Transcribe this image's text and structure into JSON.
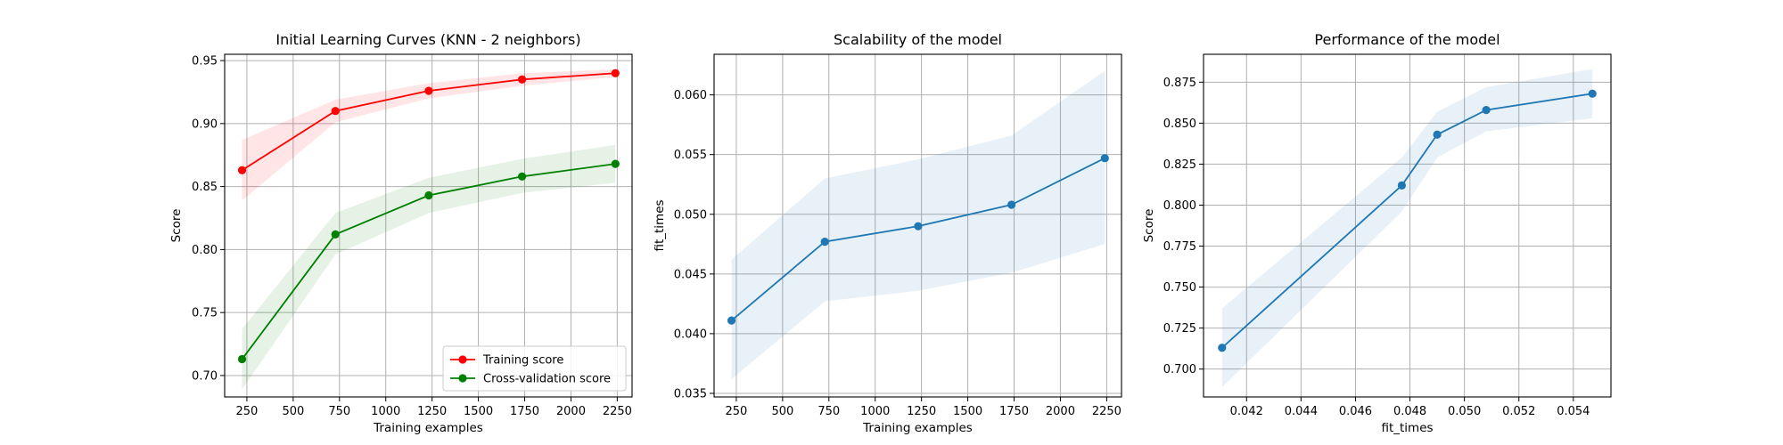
{
  "chart_data": [
    {
      "type": "line",
      "title": "Initial Learning Curves (KNN - 2 neighbors)",
      "xlabel": "Training examples",
      "ylabel": "Score",
      "xlim": [
        130,
        2330
      ],
      "ylim": [
        0.683,
        0.955
      ],
      "xticks": [
        250,
        500,
        750,
        1000,
        1250,
        1500,
        1750,
        2000,
        2250
      ],
      "xtick_labels": [
        "250",
        "500",
        "750",
        "1000",
        "1250",
        "1500",
        "1750",
        "2000",
        "2250"
      ],
      "yticks": [
        0.7,
        0.75,
        0.8,
        0.85,
        0.9,
        0.95
      ],
      "ytick_labels": [
        "0.70",
        "0.75",
        "0.80",
        "0.85",
        "0.90",
        "0.95"
      ],
      "grid": true,
      "legend": "lower-right",
      "x": [
        224,
        728,
        1232,
        1736,
        2240
      ],
      "series": [
        {
          "name": "Training score",
          "color": "#ff0000",
          "band_color": "#ff0000",
          "values": [
            0.863,
            0.91,
            0.926,
            0.935,
            0.94
          ],
          "lower": [
            0.839,
            0.901,
            0.92,
            0.93,
            0.937
          ],
          "upper": [
            0.887,
            0.919,
            0.932,
            0.94,
            0.943
          ]
        },
        {
          "name": "Cross-validation score",
          "color": "#008000",
          "band_color": "#008000",
          "values": [
            0.713,
            0.812,
            0.843,
            0.858,
            0.868
          ],
          "lower": [
            0.689,
            0.796,
            0.829,
            0.845,
            0.853
          ],
          "upper": [
            0.737,
            0.829,
            0.857,
            0.872,
            0.883
          ]
        }
      ]
    },
    {
      "type": "line",
      "title": "Scalability of the model",
      "xlabel": "Training examples",
      "ylabel": "fit_times",
      "xlim": [
        130,
        2330
      ],
      "ylim": [
        0.0347,
        0.0634
      ],
      "xticks": [
        250,
        500,
        750,
        1000,
        1250,
        1500,
        1750,
        2000,
        2250
      ],
      "xtick_labels": [
        "250",
        "500",
        "750",
        "1000",
        "1250",
        "1500",
        "1750",
        "2000",
        "2250"
      ],
      "yticks": [
        0.035,
        0.04,
        0.045,
        0.05,
        0.055,
        0.06
      ],
      "ytick_labels": [
        "0.035",
        "0.040",
        "0.045",
        "0.050",
        "0.055",
        "0.060"
      ],
      "grid": true,
      "x": [
        224,
        728,
        1232,
        1736,
        2240
      ],
      "series": [
        {
          "name": "",
          "color": "#1f77b4",
          "band_color": "#1f77b4",
          "values": [
            0.0411,
            0.0477,
            0.049,
            0.0508,
            0.0547
          ],
          "lower": [
            0.0362,
            0.0427,
            0.0436,
            0.0451,
            0.0475
          ],
          "upper": [
            0.0462,
            0.053,
            0.0546,
            0.0566,
            0.062
          ]
        }
      ]
    },
    {
      "type": "line",
      "title": "Performance of the model",
      "xlabel": "fit_times",
      "ylabel": "Score",
      "xlim": [
        0.04042,
        0.05538
      ],
      "ylim": [
        0.683,
        0.892
      ],
      "xticks": [
        0.042,
        0.044,
        0.046,
        0.048,
        0.05,
        0.052,
        0.054
      ],
      "xtick_labels": [
        "0.042",
        "0.044",
        "0.046",
        "0.048",
        "0.050",
        "0.052",
        "0.054"
      ],
      "yticks": [
        0.7,
        0.725,
        0.75,
        0.775,
        0.8,
        0.825,
        0.85,
        0.875
      ],
      "ytick_labels": [
        "0.700",
        "0.725",
        "0.750",
        "0.775",
        "0.800",
        "0.825",
        "0.850",
        "0.875"
      ],
      "grid": true,
      "x": [
        0.0411,
        0.0477,
        0.049,
        0.0508,
        0.0547
      ],
      "series": [
        {
          "name": "",
          "color": "#1f77b4",
          "band_color": "#1f77b4",
          "values": [
            0.713,
            0.812,
            0.843,
            0.858,
            0.868
          ],
          "lower": [
            0.689,
            0.796,
            0.829,
            0.845,
            0.853
          ],
          "upper": [
            0.737,
            0.829,
            0.857,
            0.872,
            0.883
          ]
        }
      ]
    }
  ]
}
